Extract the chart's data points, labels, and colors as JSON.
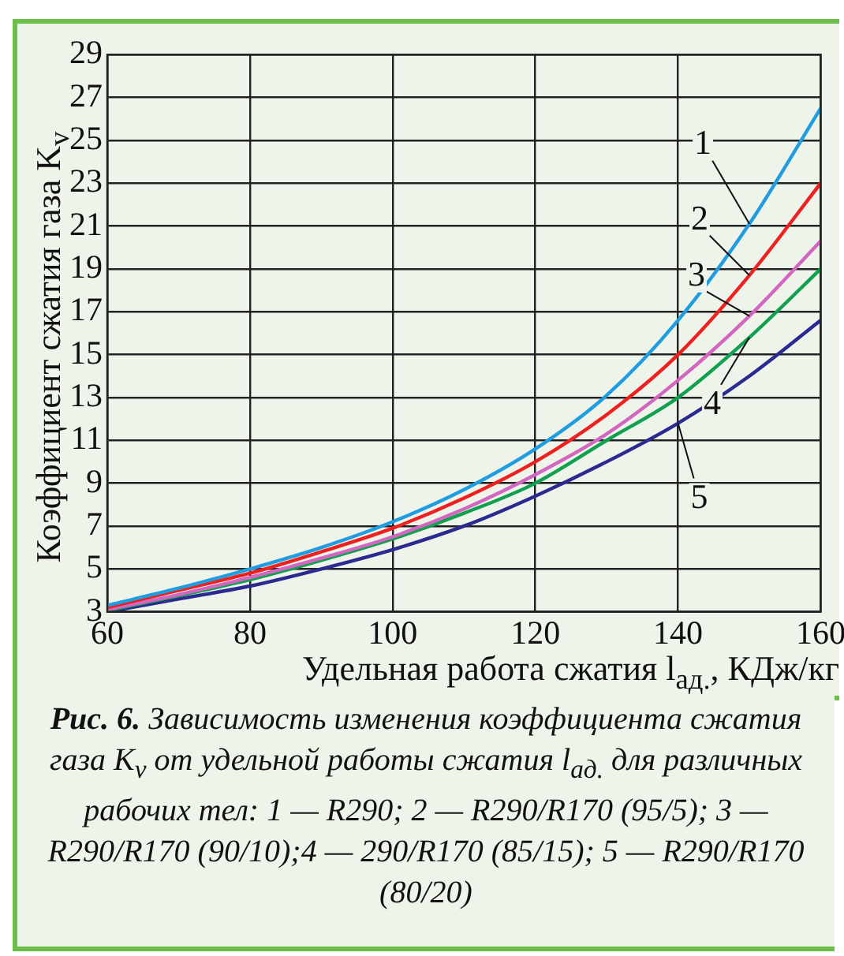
{
  "chart_data": {
    "type": "line",
    "title": "Рис. 6.",
    "xlabel": "Удельная работа сжатия l$_{ад.}$, КДж/кг",
    "ylabel": "Коэффициент сжатия газа K$_{v}$",
    "annotations": [
      "Зависимость изменения коэффициента сжатия газа K$_{v}$ от удельной работы сжатия l$_{ад.}$ для различных рабочих тел: 1 — R290; 2 — R290/R170 (95/5); 3 — R290/R170 (90/10);4 — 290/R170 (85/15); 5 — R290/R170 (80/20)"
    ],
    "x": [
      60,
      70,
      80,
      90,
      100,
      110,
      120,
      130,
      140,
      150,
      160
    ],
    "series": [
      {
        "name": "1",
        "color": "#1f9de0",
        "values": [
          3.3,
          4.1,
          5.0,
          6.0,
          7.2,
          8.7,
          10.6,
          13.1,
          16.6,
          21.1,
          26.5
        ]
      },
      {
        "name": "2",
        "color": "#ee2020",
        "values": [
          3.2,
          4.0,
          4.8,
          5.8,
          6.9,
          8.3,
          10.0,
          12.2,
          15.0,
          18.7,
          23.0
        ]
      },
      {
        "name": "3",
        "color": "#d266c0",
        "values": [
          3.1,
          3.8,
          4.6,
          5.5,
          6.5,
          7.8,
          9.4,
          11.3,
          13.8,
          16.8,
          20.3
        ]
      },
      {
        "name": "4",
        "color": "#10a050",
        "values": [
          3.05,
          3.75,
          4.5,
          5.4,
          6.4,
          7.6,
          9.0,
          11.0,
          13.0,
          15.8,
          19.0
        ]
      },
      {
        "name": "5",
        "color": "#2a2a90",
        "values": [
          3.0,
          3.6,
          4.2,
          5.0,
          5.9,
          7.0,
          8.4,
          10.0,
          11.8,
          14.0,
          16.6
        ]
      }
    ],
    "xlim": [
      60,
      160
    ],
    "xticks": [
      60,
      80,
      100,
      120,
      140,
      160
    ],
    "ylim": [
      3,
      29
    ],
    "yticks": [
      3,
      5,
      7,
      9,
      11,
      13,
      15,
      17,
      19,
      21,
      23,
      25,
      27,
      29
    ],
    "grid": true,
    "legend": false,
    "marker": "none",
    "line_style": "solid"
  }
}
